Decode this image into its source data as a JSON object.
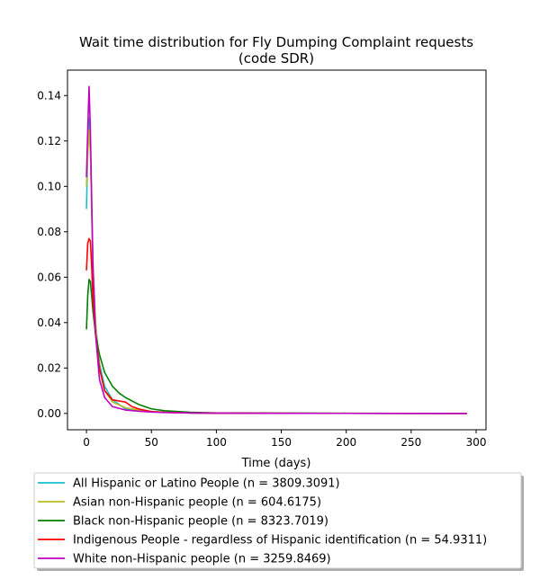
{
  "chart_data": {
    "type": "line",
    "title": "Wait time distribution  for Fly Dumping Complaint  requests\n(code SDR)",
    "xlabel": "Time (days)",
    "ylabel": "",
    "xlim": [
      -14.6,
      307.6
    ],
    "ylim": [
      -0.0072,
      0.1512
    ],
    "xticks": [
      0,
      50,
      100,
      150,
      200,
      250,
      300
    ],
    "yticks": [
      0.0,
      0.02,
      0.04,
      0.06,
      0.08,
      0.1,
      0.12,
      0.14
    ],
    "xtick_labels": [
      "0",
      "50",
      "100",
      "150",
      "200",
      "250",
      "300"
    ],
    "ytick_labels": [
      "0.00",
      "0.02",
      "0.04",
      "0.06",
      "0.08",
      "0.10",
      "0.12",
      "0.14"
    ],
    "grid": false,
    "legend_position": "below",
    "series": [
      {
        "name": "All Hispanic or Latino People (n = 3809.3091)",
        "color": "#17becf",
        "x": [
          0,
          1,
          2,
          3,
          4,
          5,
          7,
          10,
          14,
          20,
          30,
          40,
          50,
          60,
          80,
          100,
          150,
          200,
          250,
          293
        ],
        "y": [
          0.09,
          0.115,
          0.13,
          0.12,
          0.09,
          0.065,
          0.04,
          0.022,
          0.012,
          0.006,
          0.002,
          0.0012,
          0.0008,
          0.0005,
          0.0002,
          0.0001,
          5e-05,
          3e-05,
          2e-05,
          1e-05
        ]
      },
      {
        "name": "Asian non-Hispanic people (n = 604.6175)",
        "color": "#bcbd22",
        "x": [
          0,
          1,
          2,
          3,
          4,
          5,
          7,
          10,
          14,
          20,
          30,
          40,
          50,
          60,
          80,
          100,
          150,
          200,
          250,
          293
        ],
        "y": [
          0.1,
          0.115,
          0.125,
          0.115,
          0.09,
          0.065,
          0.04,
          0.02,
          0.01,
          0.005,
          0.0025,
          0.0015,
          0.0008,
          0.0005,
          0.0002,
          0.0001,
          5e-05,
          3e-05,
          2e-05,
          1e-05
        ]
      },
      {
        "name": "Black non-Hispanic people (n = 8323.7019)",
        "color": "#008000",
        "x": [
          0,
          1,
          2,
          3,
          4,
          5,
          7,
          10,
          14,
          20,
          25,
          30,
          40,
          50,
          60,
          80,
          100,
          150,
          200,
          250,
          293
        ],
        "y": [
          0.037,
          0.052,
          0.059,
          0.058,
          0.052,
          0.045,
          0.035,
          0.026,
          0.018,
          0.012,
          0.009,
          0.007,
          0.004,
          0.002,
          0.0012,
          0.0005,
          0.0002,
          0.0001,
          5e-05,
          3e-05,
          1e-05
        ]
      },
      {
        "name": "Indigenous People - regardless of Hispanic identification (n = 54.9311)",
        "color": "#ff0000",
        "x": [
          0,
          1,
          2,
          3,
          4,
          5,
          7,
          10,
          14,
          20,
          30,
          35,
          40,
          50,
          60,
          80,
          100,
          150,
          200,
          250,
          293
        ],
        "y": [
          0.063,
          0.075,
          0.077,
          0.076,
          0.065,
          0.05,
          0.035,
          0.02,
          0.01,
          0.006,
          0.005,
          0.003,
          0.002,
          0.0008,
          0.0005,
          0.0002,
          0.0001,
          5e-05,
          3e-05,
          2e-05,
          1e-05
        ]
      },
      {
        "name": "White non-Hispanic people (n = 3259.8469)",
        "color": "#c000c0",
        "x": [
          0,
          1,
          2,
          3,
          4,
          5,
          7,
          10,
          14,
          20,
          30,
          40,
          50,
          60,
          80,
          100,
          150,
          200,
          250,
          293
        ],
        "y": [
          0.104,
          0.125,
          0.144,
          0.125,
          0.095,
          0.065,
          0.035,
          0.015,
          0.007,
          0.003,
          0.0015,
          0.001,
          0.0006,
          0.0004,
          0.0002,
          0.0001,
          5e-05,
          3e-05,
          2e-05,
          1e-05
        ]
      }
    ]
  }
}
